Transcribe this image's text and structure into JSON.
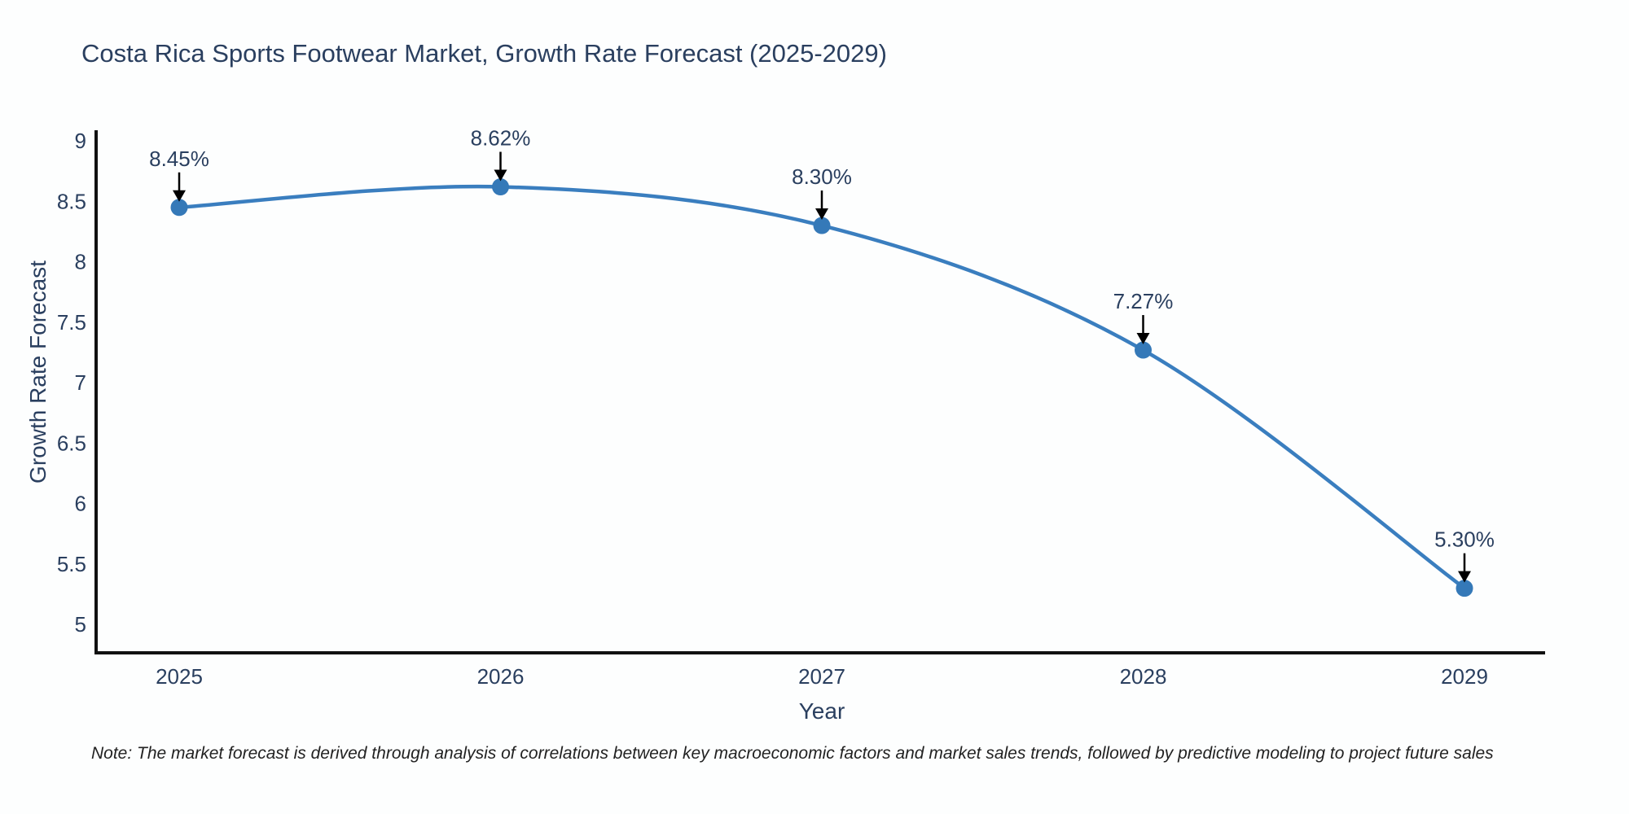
{
  "chart_data": {
    "type": "line",
    "line_shape": "spline",
    "title": "Costa Rica Sports Footwear Market, Growth Rate Forecast (2025-2029)",
    "xlabel": "Year",
    "ylabel": "Growth Rate Forecast",
    "categories": [
      "2025",
      "2026",
      "2027",
      "2028",
      "2029"
    ],
    "series": [
      {
        "name": "Growth Rate Forecast",
        "values": [
          8.45,
          8.62,
          8.3,
          7.27,
          5.3
        ]
      }
    ],
    "point_labels": [
      "8.45%",
      "8.62%",
      "8.30%",
      "7.27%",
      "5.30%"
    ],
    "yticks": [
      5,
      5.5,
      6,
      6.5,
      7,
      7.5,
      8,
      8.5,
      9
    ],
    "ylim": [
      4.766,
      9.088
    ],
    "grid": false,
    "legend_position": "none",
    "colors": {
      "line": "#3a7ebf",
      "marker": "#3579b8",
      "axis": "#111111",
      "text": "#2a3f5f",
      "annotation_arrow": "#000000"
    }
  },
  "note": "Note: The market forecast is derived through analysis of correlations between key macroeconomic factors and market sales trends, followed by predictive modeling to project future sales"
}
